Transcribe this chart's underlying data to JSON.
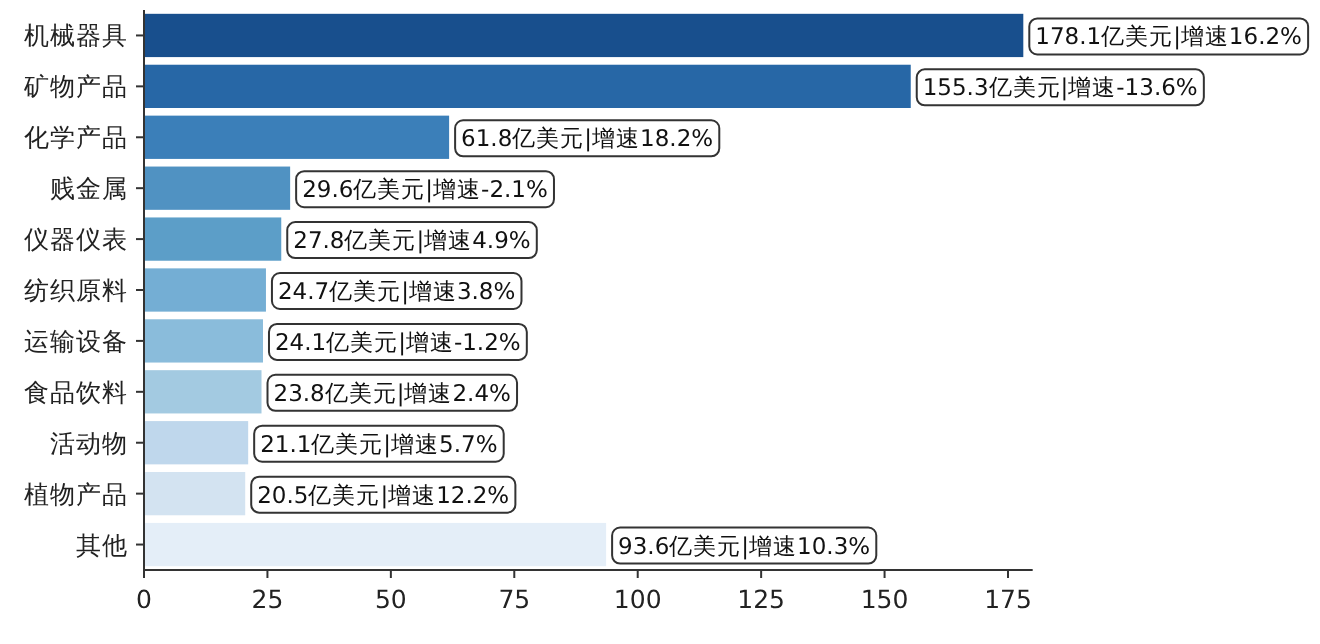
{
  "chart_data": {
    "type": "bar",
    "orientation": "horizontal",
    "categories": [
      "机械器具",
      "矿物产品",
      "化学产品",
      "贱金属",
      "仪器仪表",
      "纺织原料",
      "运输设备",
      "食品饮料",
      "活动物",
      "植物产品",
      "其他"
    ],
    "values": [
      178.1,
      155.3,
      61.8,
      29.6,
      27.8,
      24.7,
      24.1,
      23.8,
      21.1,
      20.5,
      93.6
    ],
    "value_labels": [
      "178.1亿美元|增速16.2%",
      "155.3亿美元|增速-13.6%",
      "61.8亿美元|增速18.2%",
      "29.6亿美元|增速-2.1%",
      "27.8亿美元|增速4.9%",
      "24.7亿美元|增速3.8%",
      "24.1亿美元|增速-1.2%",
      "23.8亿美元|增速2.4%",
      "21.1亿美元|增速5.7%",
      "20.5亿美元|增速12.2%",
      "93.6亿美元|增速10.3%"
    ],
    "colors": [
      "#184f8d",
      "#2767a6",
      "#3b7fb9",
      "#5092c2",
      "#5c9ec8",
      "#74aed4",
      "#8abcdb",
      "#a3cae1",
      "#bfd7ec",
      "#d3e3f1",
      "#e4eef8"
    ],
    "xlim": [
      0,
      180
    ],
    "xticks": [
      0,
      25,
      50,
      75,
      100,
      125,
      150,
      175
    ]
  }
}
